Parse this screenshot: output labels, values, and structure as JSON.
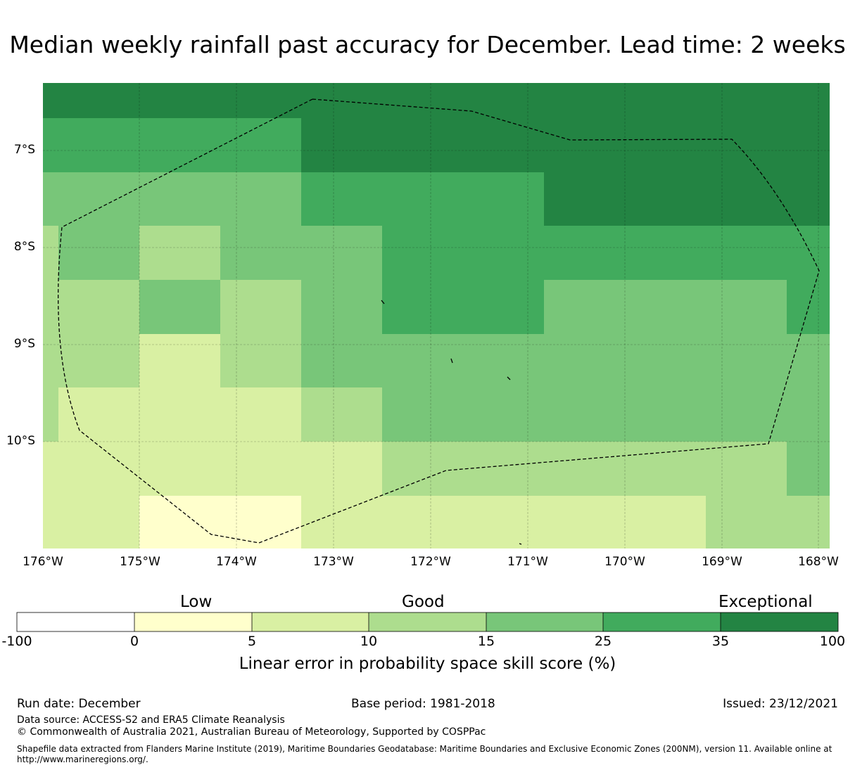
{
  "title": "Median weekly rainfall past accuracy for December. Lead time: 2 weeks",
  "colors": {
    "c0": "#ffffff",
    "c1": "#ffffcc",
    "c2": "#d9f0a3",
    "c3": "#addd8e",
    "c4": "#78c679",
    "c5": "#41ab5d",
    "c6": "#238443"
  },
  "map": {
    "lat_labels": [
      "7°S",
      "8°S",
      "9°S",
      "10°S"
    ],
    "lon_labels": [
      "176°W",
      "175°W",
      "174°W",
      "173°W",
      "172°W",
      "171°W",
      "170°W",
      "169°W",
      "168°W"
    ]
  },
  "colorbar": {
    "categories": [
      "Low",
      "Good",
      "Exceptional"
    ],
    "ticks": [
      "-100",
      "0",
      "5",
      "10",
      "15",
      "25",
      "35",
      "100"
    ],
    "label": "Linear error in probability space skill score (%)"
  },
  "footer": {
    "run_date": "Run date: December",
    "base_period": "Base period: 1981-2018",
    "issued": "Issued: 23/12/2021",
    "data_source": "Data source: ACCESS-S2 and ERA5 Climate Reanalysis",
    "copyright": "© Commonwealth of Australia 2021, Australian Bureau of Meteorology, Supported by COSPPac",
    "shapefile": "Shapefile data extracted from Flanders Marine Institute (2019), Maritime Boundaries Geodatabase: Maritime Boundaries and Exclusive Economic Zones (200NM), version 11. Available online at http://www.marineregions.org/."
  }
}
